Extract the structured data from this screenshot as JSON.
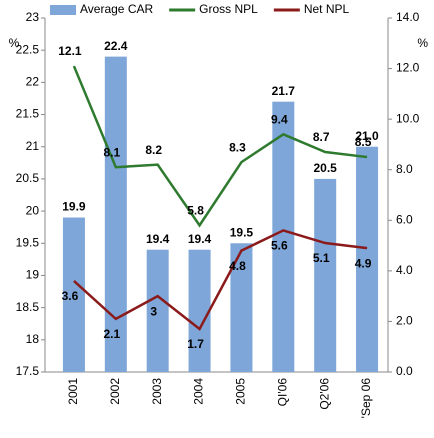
{
  "chart_data": {
    "type": "bar_line",
    "categories": [
      "2001",
      "2002",
      "2003",
      "2004",
      "2005",
      "QI'06",
      "Q2'06",
      "'Sep 06"
    ],
    "series": [
      {
        "name": "Average CAR",
        "type": "bar",
        "color": "#7ea6d8",
        "values": [
          19.9,
          22.4,
          19.4,
          19.4,
          19.5,
          21.7,
          20.5,
          21.0
        ],
        "value_labels": [
          "19.9",
          "22.4",
          "19.4",
          "19.4",
          "19.5",
          "21.7",
          "20.5",
          "21.0"
        ]
      },
      {
        "name": "Gross NPL",
        "type": "line",
        "axis": "y2",
        "color": "#2e7a2e",
        "values": [
          12.1,
          8.1,
          8.2,
          5.8,
          8.3,
          9.4,
          8.7,
          8.5
        ]
      },
      {
        "name": "Net NPL",
        "type": "line",
        "axis": "y2",
        "color": "#8b1a1a",
        "values": [
          3.6,
          2.1,
          3.0,
          1.7,
          4.8,
          5.6,
          5.1,
          4.9
        ]
      }
    ],
    "y_unit": "%",
    "y2_unit": "%",
    "ylim": [
      17.5,
      23
    ],
    "yticks": [
      17.5,
      18,
      18.5,
      19,
      19.5,
      20,
      20.5,
      21,
      21.5,
      22,
      22.5,
      23
    ],
    "y2lim": [
      0,
      14
    ],
    "y2ticks": [
      {
        "value": 0,
        "label": "0.0"
      },
      {
        "value": 2,
        "label": "2.0"
      },
      {
        "value": 4,
        "label": "4.0"
      },
      {
        "value": 6,
        "label": "6.0"
      },
      {
        "value": 8,
        "label": "8.0"
      },
      {
        "value": 10,
        "label": "10.0"
      },
      {
        "value": 12,
        "label": "12.0"
      },
      {
        "value": 14,
        "label": "14.0"
      }
    ],
    "legend": "top"
  }
}
